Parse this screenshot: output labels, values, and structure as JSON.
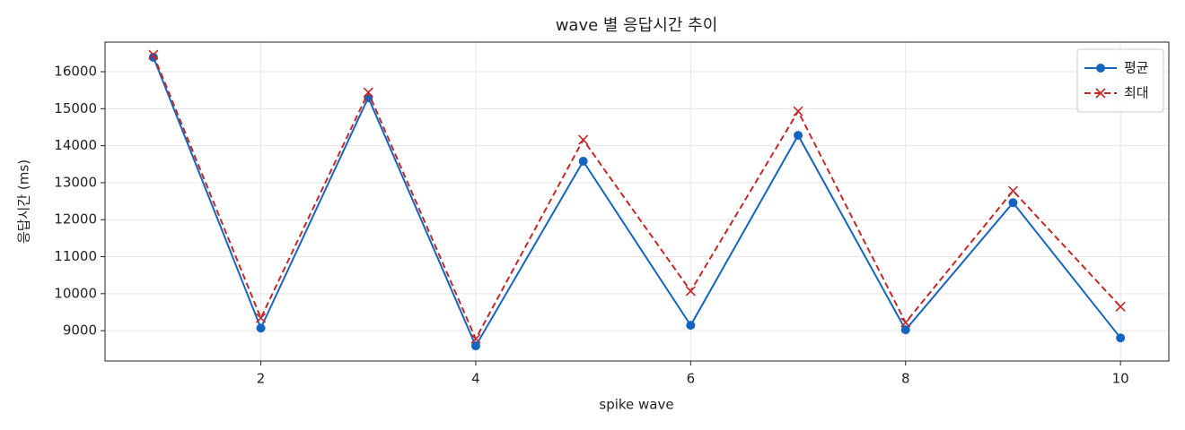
{
  "chart_data": {
    "type": "line",
    "title": "wave 별 응답시간 추이",
    "x_label": "spike wave",
    "y_label": "응답시간 (ms)",
    "x": [
      1,
      2,
      3,
      4,
      5,
      6,
      7,
      8,
      9,
      10
    ],
    "series": [
      {
        "name": "평균",
        "color": "#1565c0",
        "marker": "o",
        "linestyle": "solid",
        "values": [
          16390,
          9070,
          15300,
          8590,
          13580,
          9145,
          14280,
          9024,
          12460,
          8805
        ]
      },
      {
        "name": "최대",
        "color": "#c62828",
        "marker": "x",
        "linestyle": "dashed",
        "values": [
          16460,
          9340,
          15440,
          8780,
          14160,
          10070,
          14930,
          9220,
          12780,
          9650
        ]
      }
    ],
    "xlim": [
      0.55,
      10.45
    ],
    "xticks": [
      2,
      4,
      6,
      8,
      10
    ],
    "ylim": [
      8180,
      16800
    ],
    "yticks": [
      9000,
      10000,
      11000,
      12000,
      13000,
      14000,
      15000,
      16000
    ],
    "grid": true,
    "legend": "upper right"
  }
}
